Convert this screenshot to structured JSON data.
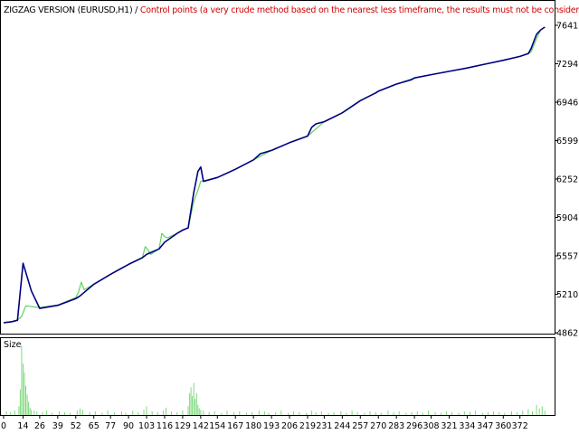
{
  "header": {
    "title_main": "ZIGZAG VERSION (EURUSD,H1)",
    "title_sep": " / ",
    "title_note": "Control points (a very crude method based on the nearest less timeframe, the results must not be considered)"
  },
  "subwindow": {
    "label": "Size"
  },
  "colors": {
    "main_series": "#000080",
    "control_series": "#5fd35f",
    "size_bars": "#7fd87f",
    "title_note": "#d20000",
    "axis": "#000000"
  },
  "chart_data": [
    {
      "type": "line",
      "title": "ZIGZAG VERSION (EURUSD,H1)",
      "xlabel": "",
      "ylabel": "",
      "xlim": [
        0,
        395
      ],
      "ylim": [
        4862,
        7641
      ],
      "x_ticks": [
        0,
        14,
        26,
        39,
        52,
        65,
        77,
        90,
        103,
        116,
        129,
        142,
        154,
        167,
        180,
        193,
        206,
        219,
        231,
        244,
        257,
        270,
        283,
        296,
        308,
        321,
        334,
        347,
        360,
        372
      ],
      "y_ticks": [
        4862,
        5210,
        5557,
        5904,
        6252,
        6599,
        6946,
        7294,
        7641
      ],
      "grid": false,
      "series": [
        {
          "name": "",
          "color": "#000080",
          "x": [
            0,
            6,
            10,
            14,
            20,
            26,
            39,
            52,
            55,
            65,
            77,
            90,
            100,
            103,
            112,
            116,
            125,
            129,
            133,
            137,
            140,
            142,
            144,
            154,
            167,
            180,
            185,
            193,
            206,
            219,
            222,
            225,
            231,
            244,
            257,
            268,
            270,
            283,
            294,
            296,
            308,
            321,
            334,
            347,
            360,
            372,
            378,
            380,
            384,
            387,
            390
          ],
          "y": [
            4953,
            4962,
            4975,
            5490,
            5240,
            5082,
            5110,
            5170,
            5195,
            5300,
            5390,
            5480,
            5540,
            5570,
            5620,
            5680,
            5760,
            5790,
            5810,
            6130,
            6320,
            6360,
            6230,
            6265,
            6340,
            6425,
            6480,
            6510,
            6580,
            6640,
            6720,
            6750,
            6770,
            6850,
            6960,
            7030,
            7045,
            7110,
            7150,
            7165,
            7195,
            7225,
            7255,
            7290,
            7325,
            7360,
            7385,
            7430,
            7560,
            7600,
            7625
          ]
        },
        {
          "name": "",
          "color": "#5fd35f",
          "x": [
            0,
            6,
            10,
            13,
            16,
            26,
            39,
            52,
            54,
            56,
            58,
            65,
            77,
            90,
            100,
            102,
            104,
            106,
            112,
            114,
            116,
            118,
            125,
            129,
            133,
            137,
            140,
            142,
            144,
            154,
            167,
            180,
            193,
            206,
            219,
            231,
            244,
            257,
            270,
            283,
            296,
            308,
            321,
            334,
            347,
            360,
            372,
            378,
            380,
            384,
            387,
            390
          ],
          "y": [
            4953,
            4962,
            4975,
            5010,
            5105,
            5090,
            5112,
            5180,
            5230,
            5320,
            5250,
            5300,
            5390,
            5480,
            5540,
            5640,
            5610,
            5570,
            5620,
            5760,
            5730,
            5720,
            5760,
            5790,
            5810,
            6050,
            6150,
            6230,
            6235,
            6265,
            6340,
            6425,
            6510,
            6580,
            6640,
            6770,
            6850,
            6960,
            7045,
            7110,
            7165,
            7195,
            7225,
            7255,
            7290,
            7325,
            7360,
            7385,
            7400,
            7520,
            7600,
            7625
          ]
        }
      ]
    },
    {
      "type": "bar",
      "title": "Size",
      "xlabel": "",
      "ylabel": "",
      "xlim": [
        0,
        395
      ],
      "ylim": [
        0,
        100
      ],
      "x_ticks": [
        0,
        14,
        26,
        39,
        52,
        65,
        77,
        90,
        103,
        116,
        129,
        142,
        154,
        167,
        180,
        193,
        206,
        219,
        231,
        244,
        257,
        270,
        283,
        296,
        308,
        321,
        334,
        347,
        360,
        372
      ],
      "color": "#7fd87f",
      "x": [
        2,
        5,
        8,
        11,
        12,
        13,
        14,
        15,
        16,
        17,
        18,
        19,
        20,
        22,
        24,
        28,
        31,
        35,
        40,
        44,
        48,
        53,
        55,
        57,
        62,
        66,
        71,
        75,
        80,
        85,
        88,
        93,
        97,
        101,
        103,
        107,
        111,
        115,
        117,
        121,
        125,
        129,
        133,
        134,
        135,
        136,
        137,
        138,
        139,
        140,
        141,
        142,
        144,
        148,
        152,
        157,
        161,
        166,
        170,
        175,
        179,
        184,
        188,
        191,
        196,
        200,
        205,
        209,
        213,
        218,
        222,
        225,
        229,
        234,
        238,
        243,
        247,
        251,
        255,
        260,
        264,
        268,
        272,
        277,
        281,
        285,
        290,
        294,
        298,
        302,
        306,
        311,
        315,
        319,
        323,
        328,
        332,
        336,
        340,
        345,
        349,
        353,
        357,
        361,
        366,
        370,
        374,
        378,
        381,
        384,
        386,
        388,
        390
      ],
      "values": [
        5,
        4,
        6,
        12,
        35,
        95,
        70,
        58,
        40,
        28,
        18,
        10,
        7,
        6,
        5,
        4,
        6,
        3,
        5,
        4,
        3,
        6,
        9,
        7,
        4,
        5,
        3,
        6,
        4,
        5,
        3,
        6,
        4,
        7,
        12,
        5,
        4,
        6,
        10,
        5,
        4,
        6,
        12,
        30,
        38,
        26,
        44,
        22,
        30,
        14,
        9,
        7,
        6,
        4,
        5,
        3,
        6,
        4,
        5,
        3,
        4,
        6,
        5,
        3,
        4,
        6,
        3,
        5,
        4,
        3,
        6,
        4,
        5,
        3,
        4,
        5,
        3,
        6,
        4,
        3,
        5,
        4,
        3,
        6,
        4,
        5,
        3,
        4,
        5,
        3,
        6,
        4,
        3,
        5,
        4,
        3,
        5,
        4,
        6,
        3,
        4,
        5,
        4,
        3,
        5,
        4,
        6,
        8,
        5,
        14,
        9,
        12,
        6
      ]
    }
  ]
}
